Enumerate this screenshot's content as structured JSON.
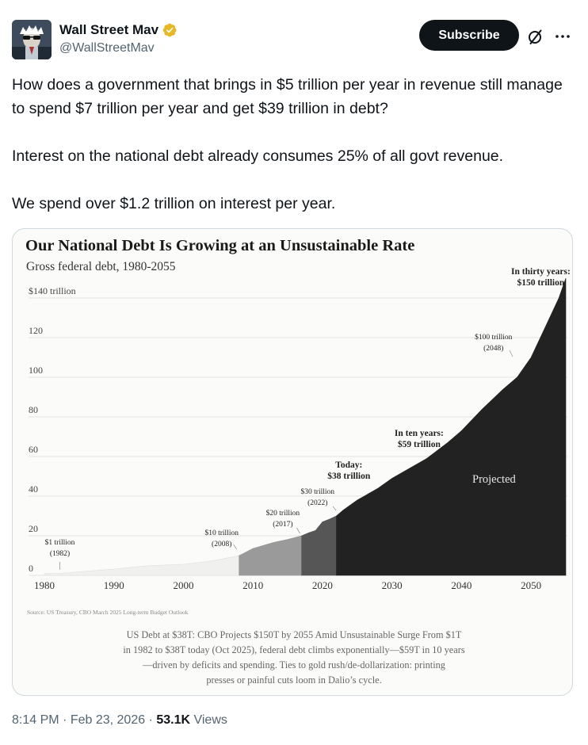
{
  "author": {
    "display_name": "Wall Street Mav",
    "handle": "@WallStreetMav",
    "verified_badge_color": "#e8b823"
  },
  "actions": {
    "subscribe_label": "Subscribe",
    "grok_icon": "grok-slash-icon",
    "more_icon": "more-horizontal-icon"
  },
  "tweet": {
    "paragraphs": [
      "How does a government that brings in $5 trillion per year in revenue still manage to spend $7 trillion per year and get $39 trillion in debt?",
      "Interest on the national debt already consumes 25% of all govt revenue.",
      "We spend over $1.2 trillion on interest per year."
    ]
  },
  "meta": {
    "time": "8:14 PM",
    "separator1": " · ",
    "date": "Feb 23, 2026",
    "separator2": " · ",
    "views_count": "53.1K",
    "views_label": " Views"
  },
  "chart_data": {
    "type": "area",
    "title": "Our National Debt Is Growing at an Unsustainable Rate",
    "subtitle": "Gross federal debt, 1980-2055",
    "ytick_labels": [
      "$140 trillion",
      "120",
      "100",
      "80",
      "60",
      "40",
      "20",
      "0"
    ],
    "yticks": [
      140,
      120,
      100,
      80,
      60,
      40,
      20,
      0
    ],
    "xticks": [
      1980,
      1990,
      2000,
      2010,
      2020,
      2030,
      2040,
      2050
    ],
    "xlim": [
      1980,
      2055
    ],
    "ylim": [
      0,
      140
    ],
    "series": [
      {
        "name": "Gross federal debt",
        "x": [
          1980,
          1982,
          1985,
          1990,
          1995,
          2000,
          2003,
          2005,
          2008,
          2010,
          2013,
          2015,
          2017,
          2018,
          2019,
          2020,
          2021,
          2022,
          2023,
          2025,
          2026,
          2028,
          2030,
          2032,
          2035,
          2038,
          2040,
          2043,
          2046,
          2048,
          2050,
          2052,
          2054,
          2055
        ],
        "values": [
          0.9,
          1,
          1.8,
          3.2,
          4.9,
          5.6,
          6.8,
          7.9,
          10,
          13.6,
          16.7,
          18.2,
          20,
          21.5,
          22.7,
          27,
          28.4,
          30,
          33,
          38,
          40,
          44,
          49,
          53,
          59,
          67,
          73,
          84,
          94,
          100,
          110,
          125,
          140,
          150
        ]
      }
    ],
    "segments": [
      {
        "from": 1980,
        "to": 2008,
        "color": "#f0f0ef"
      },
      {
        "from": 2008,
        "to": 2017,
        "color": "#9a9a9a"
      },
      {
        "from": 2017,
        "to": 2022,
        "color": "#565656"
      },
      {
        "from": 2022,
        "to": 2055,
        "color": "#222222"
      }
    ],
    "annotations": [
      {
        "lines": [
          "$1 trillion",
          "(1982)"
        ],
        "x": 1982,
        "y": 1,
        "bold": false
      },
      {
        "lines": [
          "$10 trillion",
          "(2008)"
        ],
        "x": 2008,
        "y": 10,
        "bold": false
      },
      {
        "lines": [
          "$20 trillion",
          "(2017)"
        ],
        "x": 2017,
        "y": 20,
        "bold": false
      },
      {
        "lines": [
          "$30 trillion",
          "(2022)"
        ],
        "x": 2022,
        "y": 30,
        "bold": false
      },
      {
        "lines": [
          "Today:",
          "$38 trillion"
        ],
        "x": 2025,
        "y": 38,
        "bold": true
      },
      {
        "lines": [
          "In ten years:",
          "$59 trillion"
        ],
        "x": 2035,
        "y": 59,
        "bold": true
      },
      {
        "lines": [
          "$100 trillion",
          "(2048)"
        ],
        "x": 2048,
        "y": 100,
        "bold": false
      },
      {
        "lines": [
          "In thirty years:",
          "$150 trillion"
        ],
        "x": 2055,
        "y": 150,
        "bold": true
      }
    ],
    "projected_label": "Projected",
    "source": "Source: US Treasury, CBO March 2025 Long-term Budget Outlook",
    "caption": [
      "US Debt at $38T: CBO Projects $150T by 2055 Amid Unsustainable Surge From $1T",
      "in 1982 to $38T today (Oct 2025), federal debt climbs exponentially—$59T in 10 years",
      "—driven by deficits and spending. Ties to gold rush/de-dollarization: printing",
      "presses or painful cuts loom in Dalio’s cycle."
    ]
  }
}
